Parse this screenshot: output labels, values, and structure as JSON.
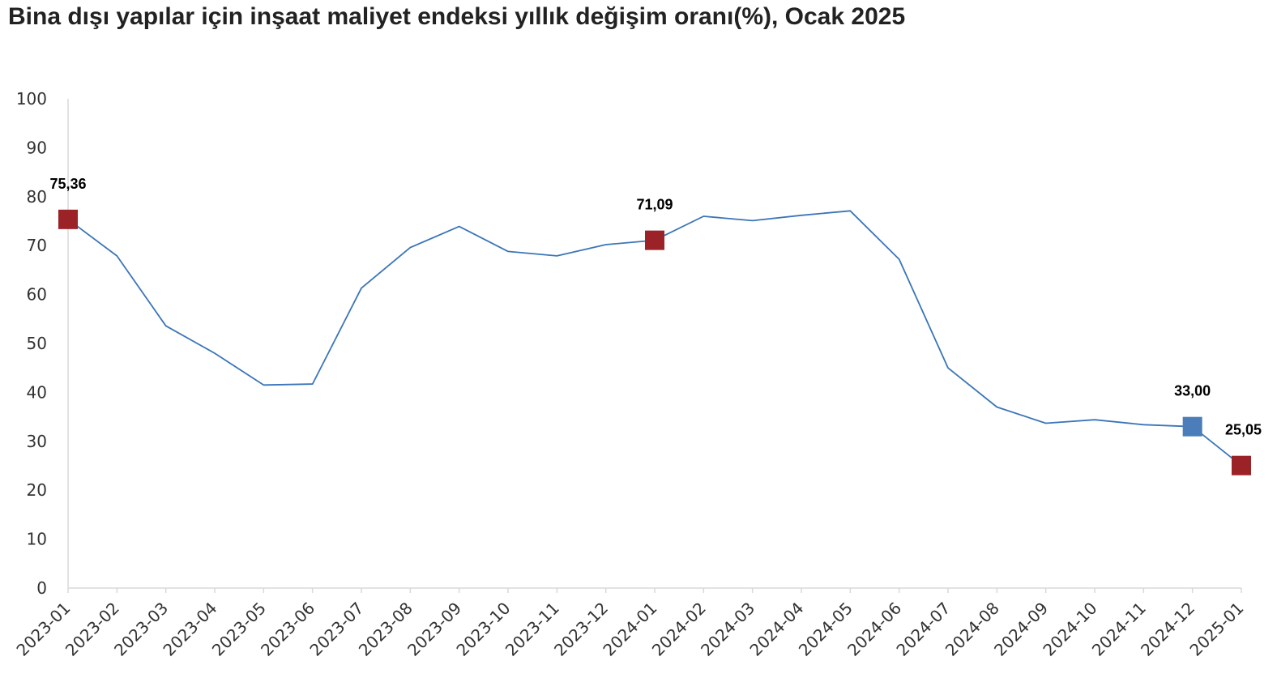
{
  "chart_data": {
    "type": "line",
    "title": "Bina dışı yapılar için inşaat maliyet endeksi yıllık değişim oranı(%), Ocak 2025",
    "xlabel": "",
    "ylabel": "",
    "ylim": [
      0,
      100
    ],
    "yticks": [
      "0",
      "10",
      "20",
      "30",
      "40",
      "50",
      "60",
      "70",
      "80",
      "90",
      "100"
    ],
    "grid": false,
    "legend": "none",
    "categories": [
      "2023-01",
      "2023-02",
      "2023-03",
      "2023-04",
      "2023-05",
      "2023-06",
      "2023-07",
      "2023-08",
      "2023-09",
      "2023-10",
      "2023-11",
      "2023-12",
      "2024-01",
      "2024-02",
      "2024-03",
      "2024-04",
      "2024-05",
      "2024-06",
      "2024-07",
      "2024-08",
      "2024-09",
      "2024-10",
      "2024-11",
      "2024-12",
      "2025-01"
    ],
    "series": [
      {
        "color": "#3A75B8",
        "values": [
          75.36,
          67.9,
          53.6,
          48.0,
          41.5,
          41.7,
          61.3,
          69.6,
          73.9,
          68.8,
          67.9,
          70.2,
          71.09,
          76.0,
          75.1,
          76.2,
          77.1,
          67.2,
          45.0,
          37.0,
          33.7,
          34.4,
          33.4,
          33.0,
          25.05
        ]
      }
    ],
    "highlights": [
      {
        "index": 0,
        "label": "75,36",
        "color": "#9B2226"
      },
      {
        "index": 12,
        "label": "71,09",
        "color": "#9B2226"
      },
      {
        "index": 23,
        "label": "33,00",
        "color": "#4A7DBA"
      },
      {
        "index": 24,
        "label": "25,05",
        "color": "#9B2226"
      }
    ],
    "axis_color": "#D9D9D9"
  }
}
